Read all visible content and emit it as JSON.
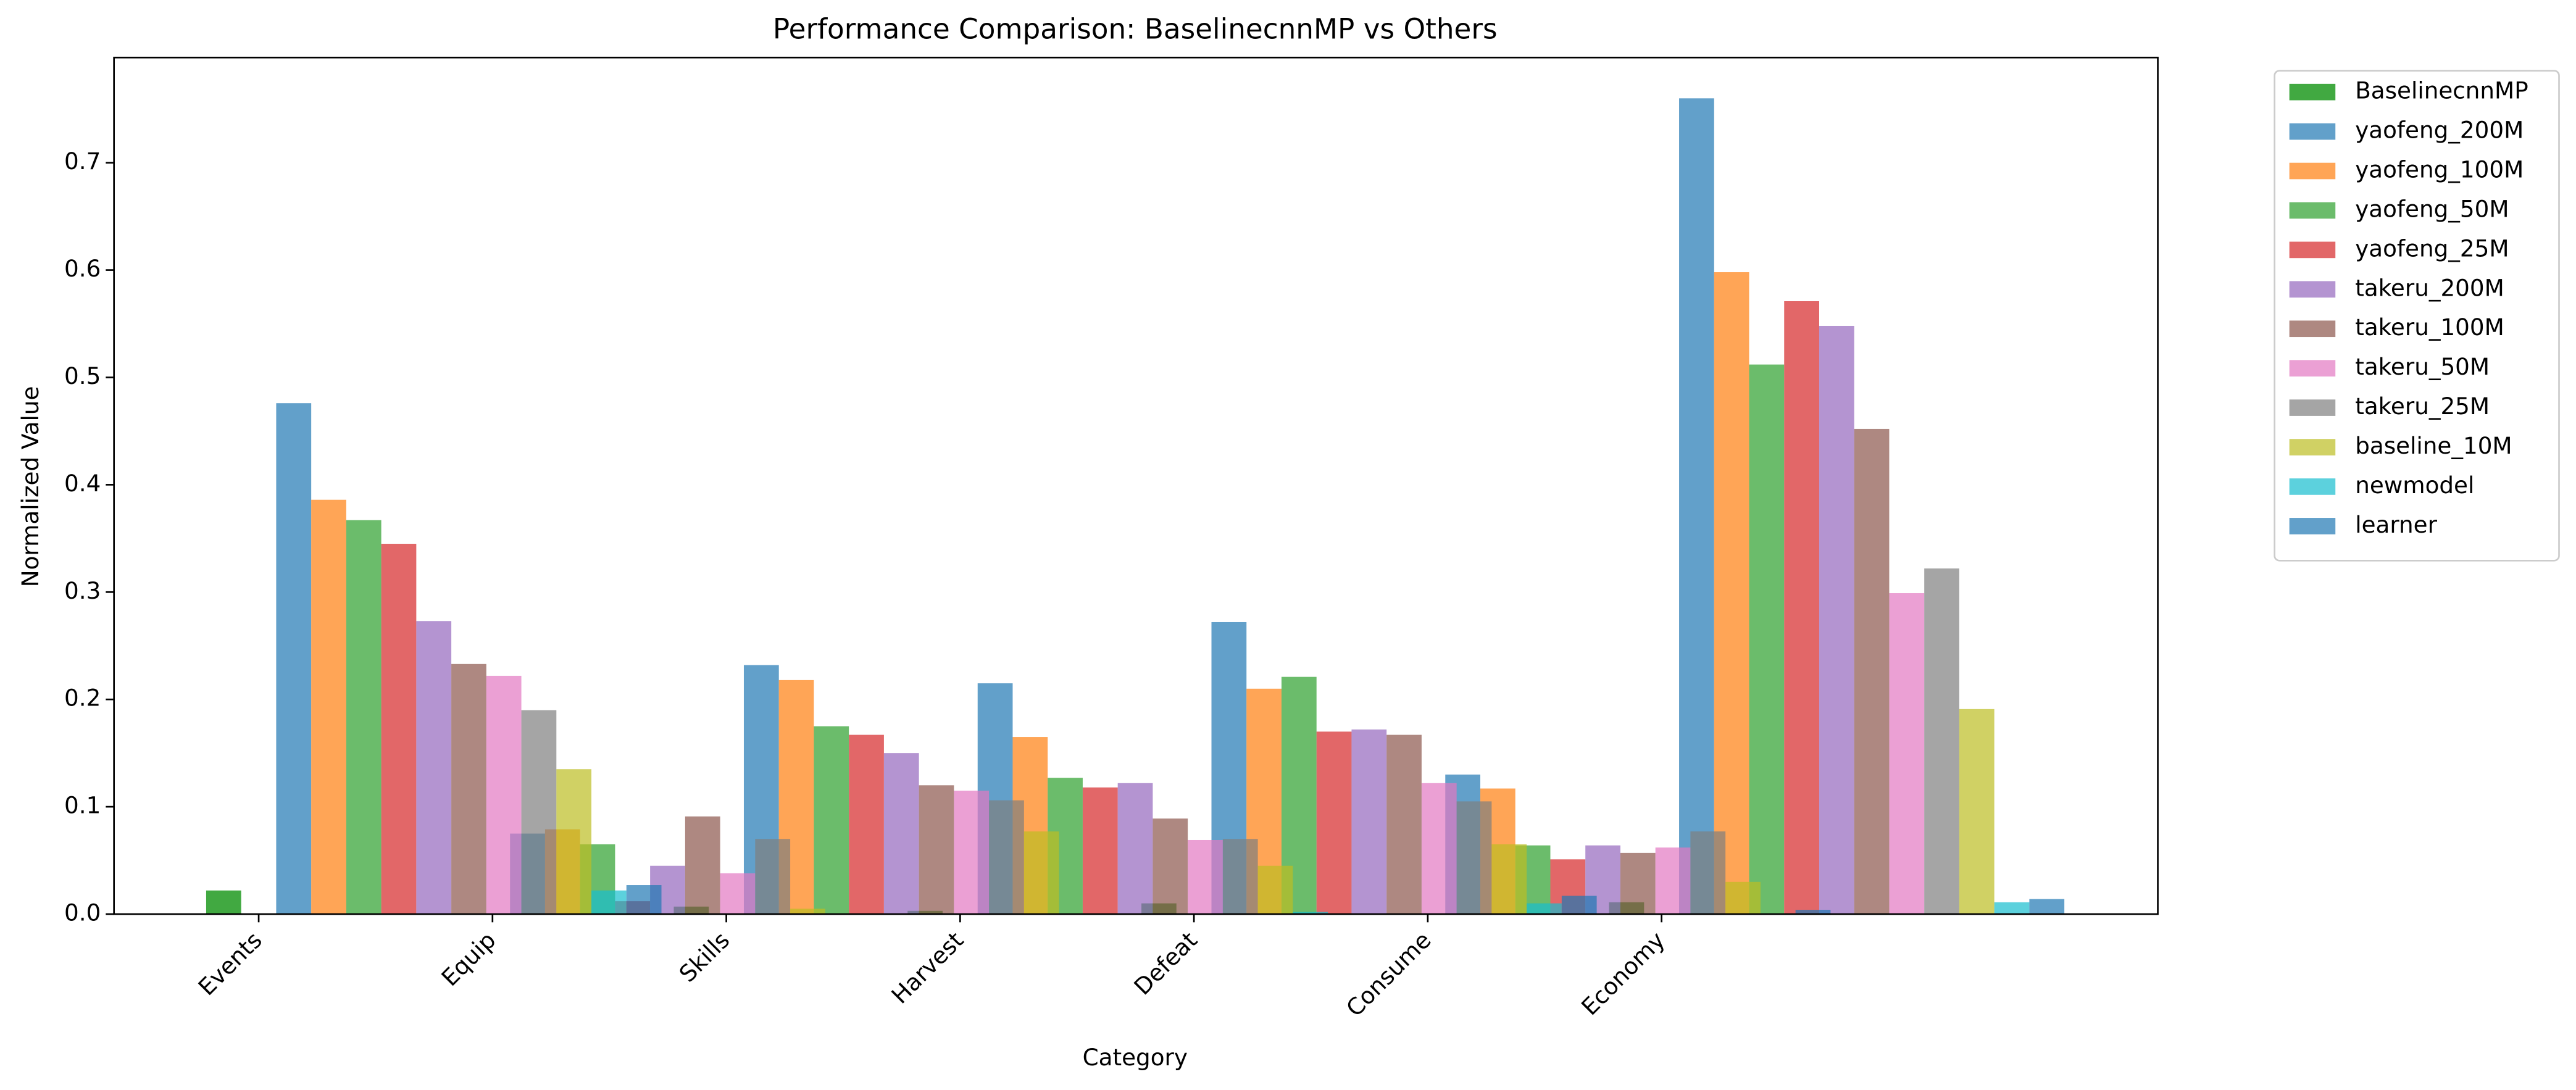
{
  "chart_data": {
    "type": "bar",
    "title": "Performance Comparison: BaselinecnnMP vs Others",
    "xlabel": "Category",
    "ylabel": "Normalized Value",
    "categories": [
      "Events",
      "Equip",
      "Skills",
      "Harvest",
      "Defeat",
      "Consume",
      "Economy"
    ],
    "ylim": [
      0,
      0.798
    ],
    "yticks": [
      {
        "value": 0,
        "label": "0.0"
      },
      0.1,
      0.2,
      0.3,
      0.4,
      0.5,
      0.6,
      0.7
    ],
    "legend": "outside upper right",
    "series": [
      {
        "name": "BaselinecnnMP",
        "color": "#2ca02c",
        "values": [
          0.022,
          0,
          0.007,
          0.003,
          0.01,
          0,
          0.011
        ]
      },
      {
        "name": "yaofeng_200M",
        "color": "#1f77b4",
        "values": [
          0.476,
          0.075,
          0.232,
          0.215,
          0.272,
          0.13,
          0.76
        ]
      },
      {
        "name": "yaofeng_100M",
        "color": "#ff7f0e",
        "values": [
          0.386,
          0.079,
          0.218,
          0.165,
          0.21,
          0.117,
          0.598
        ]
      },
      {
        "name": "yaofeng_50M",
        "color": "#2ca02c",
        "values": [
          0.367,
          0.065,
          0.175,
          0.127,
          0.221,
          0.064,
          0.512
        ]
      },
      {
        "name": "yaofeng_25M",
        "color": "#d62728",
        "values": [
          0.345,
          0.012,
          0.167,
          0.118,
          0.17,
          0.051,
          0.571
        ]
      },
      {
        "name": "takeru_200M",
        "color": "#9467bd",
        "values": [
          0.273,
          0.045,
          0.15,
          0.122,
          0.172,
          0.064,
          0.548
        ]
      },
      {
        "name": "takeru_100M",
        "color": "#8c564b",
        "values": [
          0.233,
          0.091,
          0.12,
          0.089,
          0.167,
          0.057,
          0.452
        ]
      },
      {
        "name": "takeru_50M",
        "color": "#e377c2",
        "values": [
          0.222,
          0.038,
          0.115,
          0.069,
          0.122,
          0.062,
          0.299
        ]
      },
      {
        "name": "takeru_25M",
        "color": "#7f7f7f",
        "values": [
          0.19,
          0.07,
          0.106,
          0.07,
          0.105,
          0.077,
          0.322
        ]
      },
      {
        "name": "baseline_10M",
        "color": "#bcbd22",
        "values": [
          0.135,
          0.005,
          0.077,
          0.045,
          0.065,
          0.03,
          0.191
        ]
      },
      {
        "name": "newmodel",
        "color": "#17becf",
        "values": [
          0.022,
          0,
          0,
          0.002,
          0.01,
          0,
          0.011
        ]
      },
      {
        "name": "learner",
        "color": "#1f77b4",
        "values": [
          0.027,
          0,
          0,
          0,
          0.017,
          0.004,
          0.014
        ]
      }
    ]
  }
}
